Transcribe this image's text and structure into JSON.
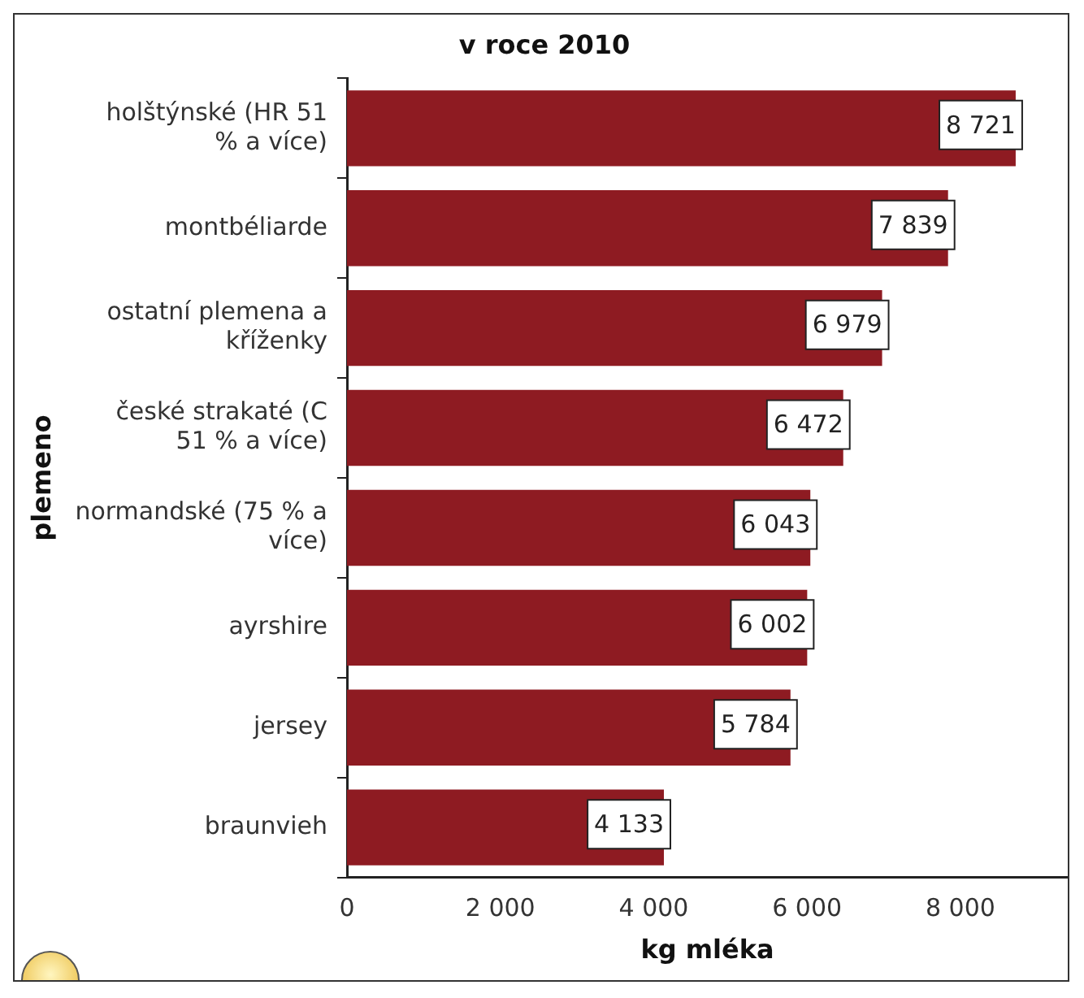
{
  "chart_data": {
    "type": "bar",
    "orientation": "horizontal",
    "title": "v roce 2010",
    "xlabel": "kg mléka",
    "ylabel": "plemeno",
    "categories": [
      "holštýnské (HR 51 % a více)",
      "montbéliarde",
      "ostatní plemena a kříženky",
      "české strakaté (C 51 % a více)",
      "normandské (75 % a více)",
      "ayrshire",
      "jersey",
      "braunvieh"
    ],
    "values": [
      8721,
      7839,
      6979,
      6472,
      6043,
      6002,
      5784,
      4133
    ],
    "value_labels": [
      "8 721",
      "7 839",
      "6 979",
      "6 472",
      "6 043",
      "6 002",
      "5 784",
      "4 133"
    ],
    "color": "#8e1b22",
    "xlim": [
      0,
      9400
    ],
    "xticks": [
      0,
      {
        "value": 2000,
        "label": "2 000"
      },
      {
        "value": 4000,
        "label": "4 000"
      },
      {
        "value": 6000,
        "label": "6 000"
      },
      {
        "value": 8000,
        "label": "8 000"
      }
    ],
    "grid": false,
    "legend": false
  }
}
